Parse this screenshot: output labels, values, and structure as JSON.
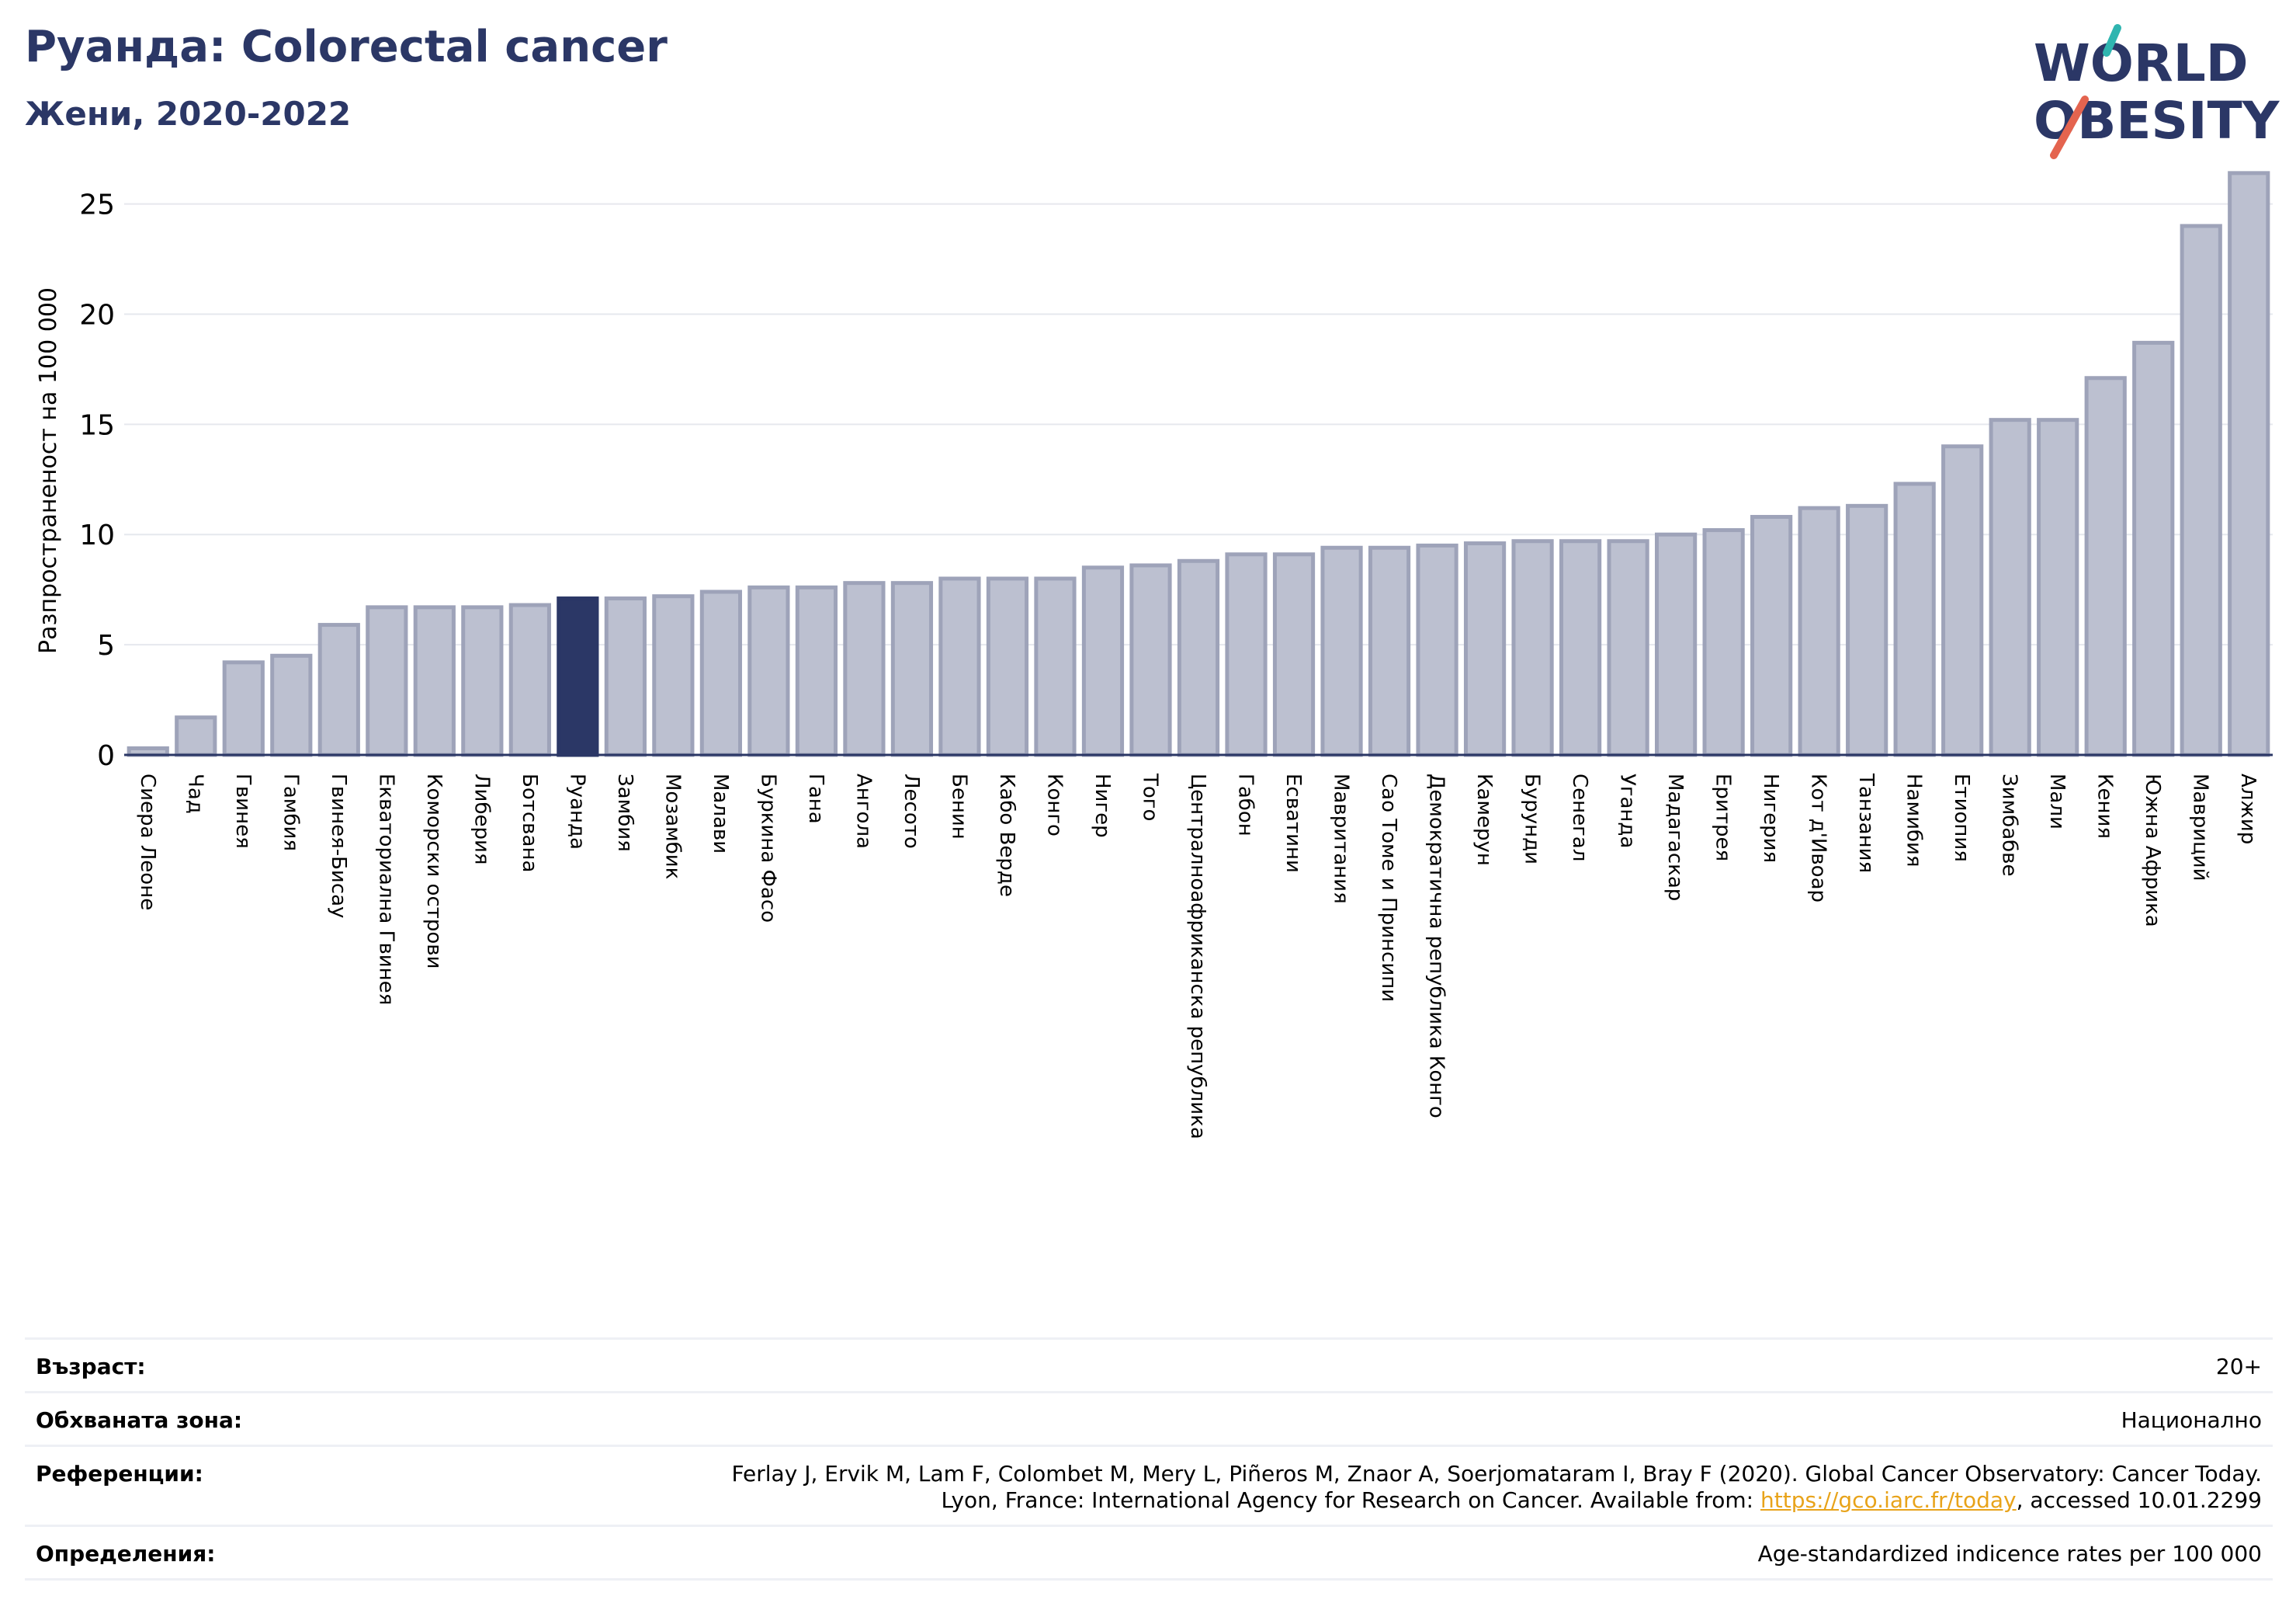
{
  "header": {
    "title": "Руанда: Colorectal cancer",
    "subtitle": "Жени, 2020-2022"
  },
  "logo": {
    "line1": "WORLD",
    "line2": "OBESITY"
  },
  "colors": {
    "accent": "#2b3766",
    "bar": "#bcc0d0",
    "bar_edge": "#9ea3b9",
    "highlight": "#2b3766",
    "link": "#e8a31a",
    "logo_teal": "#2fb5b0",
    "logo_coral": "#e4644f"
  },
  "chart_data": {
    "type": "bar",
    "ylabel": "Разпространеност  на 100 000",
    "ylim": [
      0,
      26.5
    ],
    "yticks": [
      0,
      5,
      10,
      15,
      20,
      25
    ],
    "grid": true,
    "highlight": "Руанда",
    "categories": [
      "Сиера Леоне",
      "Чад",
      "Гвинея",
      "Гамбия",
      "Гвинея-Бисау",
      "Екваториална Гвинея",
      "Коморски острови",
      "Либерия",
      "Ботсвана",
      "Руанда",
      "Замбия",
      "Мозамбик",
      "Малави",
      "Буркина Фасо",
      "Гана",
      "Ангола",
      "Лесото",
      "Бенин",
      "Кабо Верде",
      "Конго",
      "Нигер",
      "Того",
      "Централноафриканска република",
      "Габон",
      "Есватини",
      "Мавритания",
      "Сао Томе и Принсипи",
      "Демократична република Конго",
      "Камерун",
      "Бурунди",
      "Сенегал",
      "Уганда",
      "Мадагаскар",
      "Еритрея",
      "Нигерия",
      "Кот д'Ивоар",
      "Танзания",
      "Намибия",
      "Етиопия",
      "Зимбабве",
      "Мали",
      "Кения",
      "Южна Африка",
      "Мавриций",
      "Алжир"
    ],
    "values": [
      0.3,
      1.7,
      4.2,
      4.5,
      5.9,
      6.7,
      6.7,
      6.7,
      6.8,
      7.1,
      7.1,
      7.2,
      7.4,
      7.6,
      7.6,
      7.8,
      7.8,
      8.0,
      8.0,
      8.0,
      8.5,
      8.6,
      8.8,
      9.1,
      9.1,
      9.4,
      9.4,
      9.5,
      9.6,
      9.7,
      9.7,
      9.7,
      10.0,
      10.2,
      10.8,
      11.2,
      11.3,
      12.3,
      14.0,
      15.2,
      15.2,
      17.1,
      18.7,
      24.0,
      26.4
    ]
  },
  "info": {
    "age_label": "Възраст:",
    "age_value": "20+",
    "coverage_label": "Обхваната зона:",
    "coverage_value": "Национално",
    "references_label": "Референции:",
    "references_line1": "Ferlay J, Ervik M, Lam F, Colombet M, Mery L, Piñeros M, Znaor A, Soerjomataram I, Bray F (2020). Global Cancer Observatory: Cancer Today.",
    "references_line2_pre": "Lyon, France: International Agency for Research on Cancer. Available from: ",
    "references_link": "https://gco.iarc.fr/today",
    "references_line2_post": ", accessed 10.01.2299",
    "definitions_label": "Определения:",
    "definitions_value": "Age-standardized indicence rates per 100 000"
  }
}
